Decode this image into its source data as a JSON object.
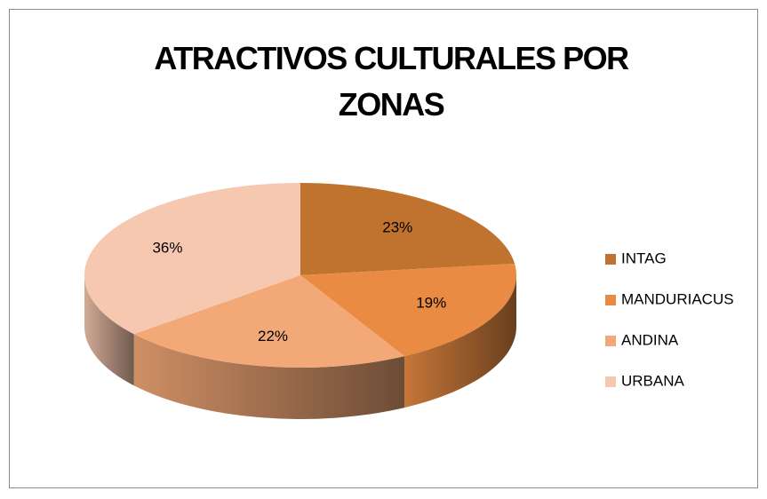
{
  "chart_data": {
    "type": "pie",
    "title": "ATRACTIVOS CULTURALES POR ZONAS",
    "categories": [
      "INTAG",
      "MANDURIACUS",
      "ANDINA",
      "URBANA"
    ],
    "values": [
      23,
      19,
      22,
      36
    ],
    "value_labels": [
      "23%",
      "19%",
      "22%",
      "36%"
    ],
    "colors": [
      "#c0732f",
      "#e98b43",
      "#f3a877",
      "#f7c8b0"
    ],
    "legend": "right"
  }
}
